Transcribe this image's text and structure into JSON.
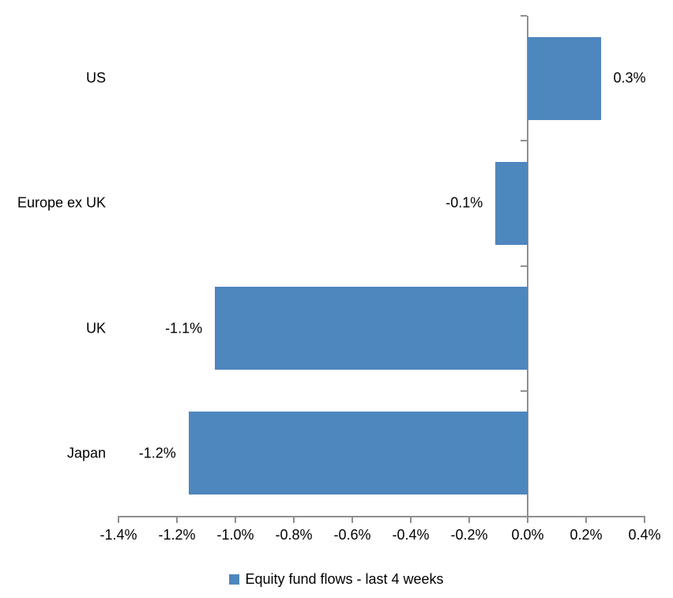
{
  "chart_data": {
    "type": "bar",
    "orientation": "horizontal",
    "title": "",
    "categories": [
      "US",
      "Europe ex UK",
      "UK",
      "Japan"
    ],
    "values": [
      0.3,
      -0.1,
      -1.1,
      -1.2
    ],
    "value_labels": [
      "0.3%",
      "-0.1%",
      "-1.1%",
      "-1.2%"
    ],
    "bar_drawn_values": [
      0.25,
      -0.11,
      -1.07,
      -1.16
    ],
    "xlabel": "",
    "ylabel": "",
    "xlim": [
      -1.4,
      0.4
    ],
    "x_tick_step": 0.2,
    "x_tick_labels": [
      "-1.4%",
      "-1.2%",
      "-1.0%",
      "-0.8%",
      "-0.6%",
      "-0.4%",
      "-0.2%",
      "0.0%",
      "0.2%",
      "0.4%"
    ],
    "grid": false,
    "legend_position": "bottom",
    "legend": [
      {
        "label": "Equity fund flows - last 4 weeks",
        "color": "#4E86BE"
      }
    ],
    "colors": {
      "bar": "#4E86BE",
      "axis": "#909090",
      "text": "#000000",
      "background": "#FFFFFF"
    }
  }
}
